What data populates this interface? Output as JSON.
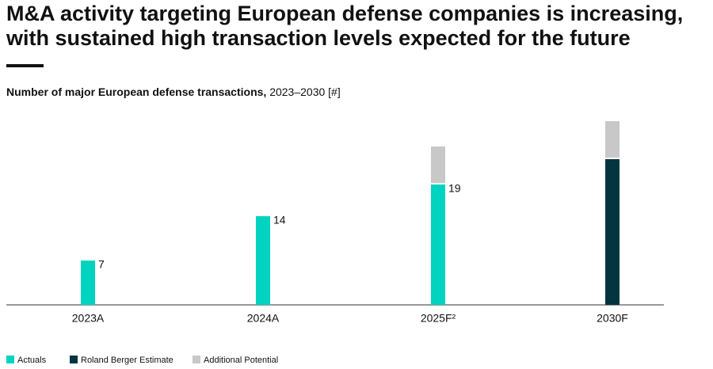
{
  "chart_data": {
    "type": "stacked_bar",
    "title": "M&A activity targeting European defense companies is increasing, with sustained high transaction levels expected for the future",
    "subtitle_bold": "Number of major European defense transactions,",
    "subtitle_rest": "2023–2030 [#]",
    "categories": [
      "2023A",
      "2024A",
      "2025F²",
      "2030F"
    ],
    "series": [
      {
        "name": "Actuals",
        "color": "#00d4c0",
        "values": [
          7,
          14,
          19,
          null
        ],
        "show_labels": true
      },
      {
        "name": "Roland Berger Estimate",
        "color": "#033540",
        "values": [
          null,
          null,
          null,
          23
        ],
        "show_labels": false
      },
      {
        "name": "Additional Potential",
        "color": "#c8c8c8",
        "values": [
          null,
          null,
          6,
          6
        ],
        "show_labels": false
      }
    ]
  }
}
